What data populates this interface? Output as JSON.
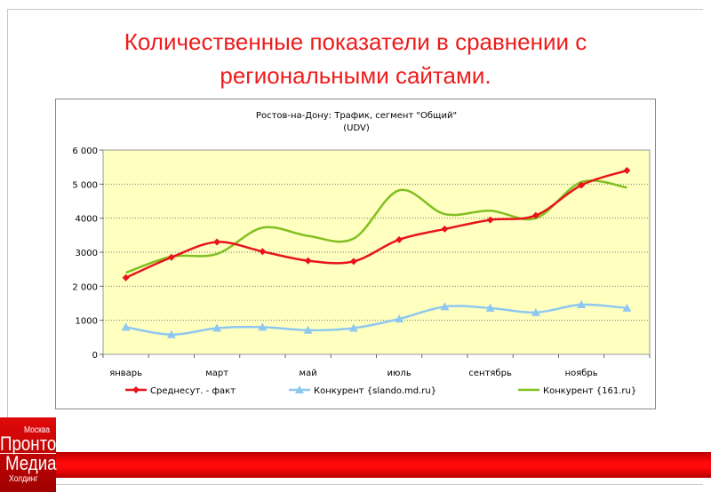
{
  "slide": {
    "title": "Количественные показатели в сравнении с региональными сайтами.",
    "logo": {
      "city": "Москва",
      "line1": "Пронто",
      "line2": "Медиа",
      "line3": "Холдинг"
    }
  },
  "chart_data": {
    "type": "line",
    "title": "Ростов-на-Дону: Трафик, сегмент \"Общий\"",
    "subtitle": "(UDV)",
    "x_tick_labels": [
      "январь",
      "март",
      "май",
      "июль",
      "сентябрь",
      "ноябрь"
    ],
    "points_per_series": 12,
    "y_ticks": [
      "0",
      "1000",
      "2 000",
      "3000",
      "4000",
      "5 000",
      "6 000"
    ],
    "ylim": [
      0,
      6000
    ],
    "grid": true,
    "legend_position": "bottom",
    "plot_background": "#ffffc0",
    "series": [
      {
        "name": "Среднесут. - факт",
        "color": "#e8141c",
        "marker": "diamond",
        "values": [
          2250,
          2850,
          3300,
          3020,
          2750,
          2730,
          3370,
          3680,
          3950,
          4080,
          4970,
          5400
        ]
      },
      {
        "name": "Конкурент {slando.md.ru}",
        "color": "#8ec8f0",
        "marker": "triangle",
        "values": [
          800,
          580,
          770,
          800,
          710,
          770,
          1040,
          1400,
          1360,
          1230,
          1460,
          1360
        ]
      },
      {
        "name": "Конкурент {161.ru}",
        "color": "#80c020",
        "marker": "none",
        "values": [
          2400,
          2870,
          2950,
          3720,
          3480,
          3400,
          4820,
          4120,
          4220,
          4000,
          5060,
          4900
        ]
      }
    ]
  }
}
